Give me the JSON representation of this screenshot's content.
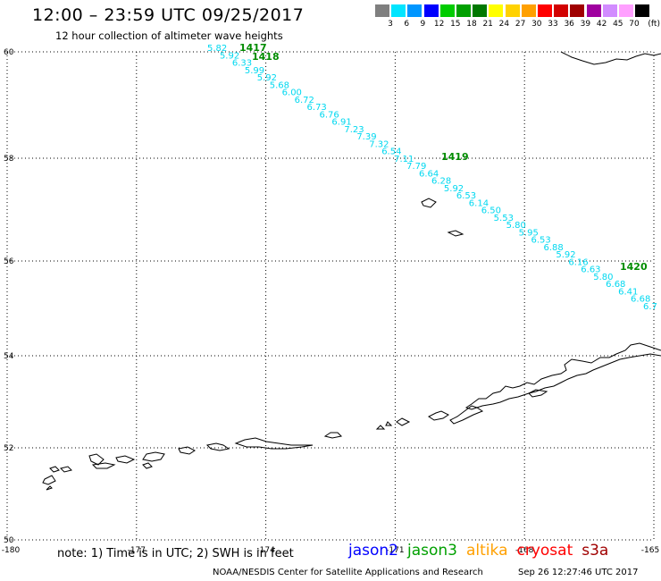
{
  "header": {
    "title": "12:00 – 23:59 UTC 09/25/2017",
    "subtitle": "12 hour collection of altimeter wave heights"
  },
  "color_scale": {
    "unit": "(ft)",
    "steps": [
      {
        "label": "3",
        "color": "#7f7f7f"
      },
      {
        "label": "6",
        "color": "#00e5ff"
      },
      {
        "label": "9",
        "color": "#0096ff"
      },
      {
        "label": "12",
        "color": "#0000ff"
      },
      {
        "label": "15",
        "color": "#00cc00"
      },
      {
        "label": "18",
        "color": "#00a000"
      },
      {
        "label": "21",
        "color": "#007800"
      },
      {
        "label": "24",
        "color": "#ffff00"
      },
      {
        "label": "27",
        "color": "#ffd200"
      },
      {
        "label": "30",
        "color": "#ffa000"
      },
      {
        "label": "33",
        "color": "#ff0000"
      },
      {
        "label": "36",
        "color": "#d20000"
      },
      {
        "label": "39",
        "color": "#a00000"
      },
      {
        "label": "42",
        "color": "#a000a0"
      },
      {
        "label": "45",
        "color": "#d28cff"
      },
      {
        "label": "70",
        "color": "#ffa0ff"
      },
      {
        "label": "",
        "color": "#000000"
      }
    ]
  },
  "map": {
    "lon_range": [
      -180,
      -165
    ],
    "lat_range": [
      50,
      60
    ],
    "lon_ticks": [
      "-180",
      "-177",
      "-174",
      "-171",
      "-168",
      "-165"
    ],
    "lat_ticks": [
      "50",
      "52",
      "54",
      "56",
      "58",
      "60"
    ],
    "track_color": "#00d8f0",
    "time_color": "#008c00",
    "time_labels": [
      "1417",
      "1418",
      "1419",
      "1420"
    ],
    "wave_heights": [
      "5.82",
      "5.92",
      "6.33",
      "5.99",
      "5.92",
      "5.68",
      "6.00",
      "6.72",
      "6.73",
      "6.76",
      "6.91",
      "7.23",
      "7.39",
      "7.32",
      "6.54",
      "7.11",
      "7.79",
      "6.64",
      "6.28",
      "5.92",
      "6.53",
      "6.14",
      "6.50",
      "5.53",
      "5.80",
      "5.95",
      "6.53",
      "6.88",
      "5.92",
      "6.16",
      "6.63",
      "5.80",
      "6.68",
      "6.41",
      "6.68",
      "6.7"
    ]
  },
  "footer": {
    "note": "note: 1) Time is in UTC; 2) SWH is in feet",
    "satellites": [
      {
        "name": "jason2",
        "color": "#0000ff"
      },
      {
        "name": "jason3",
        "color": "#00a000"
      },
      {
        "name": "altika",
        "color": "#ffa000"
      },
      {
        "name": "cryosat",
        "color": "#ff0000"
      },
      {
        "name": "s3a",
        "color": "#a00000"
      }
    ],
    "credit": "NOAA/NESDIS Center for Satellite Applications and Research",
    "timestamp": "Sep 26 12:27:46 UTC 2017"
  }
}
